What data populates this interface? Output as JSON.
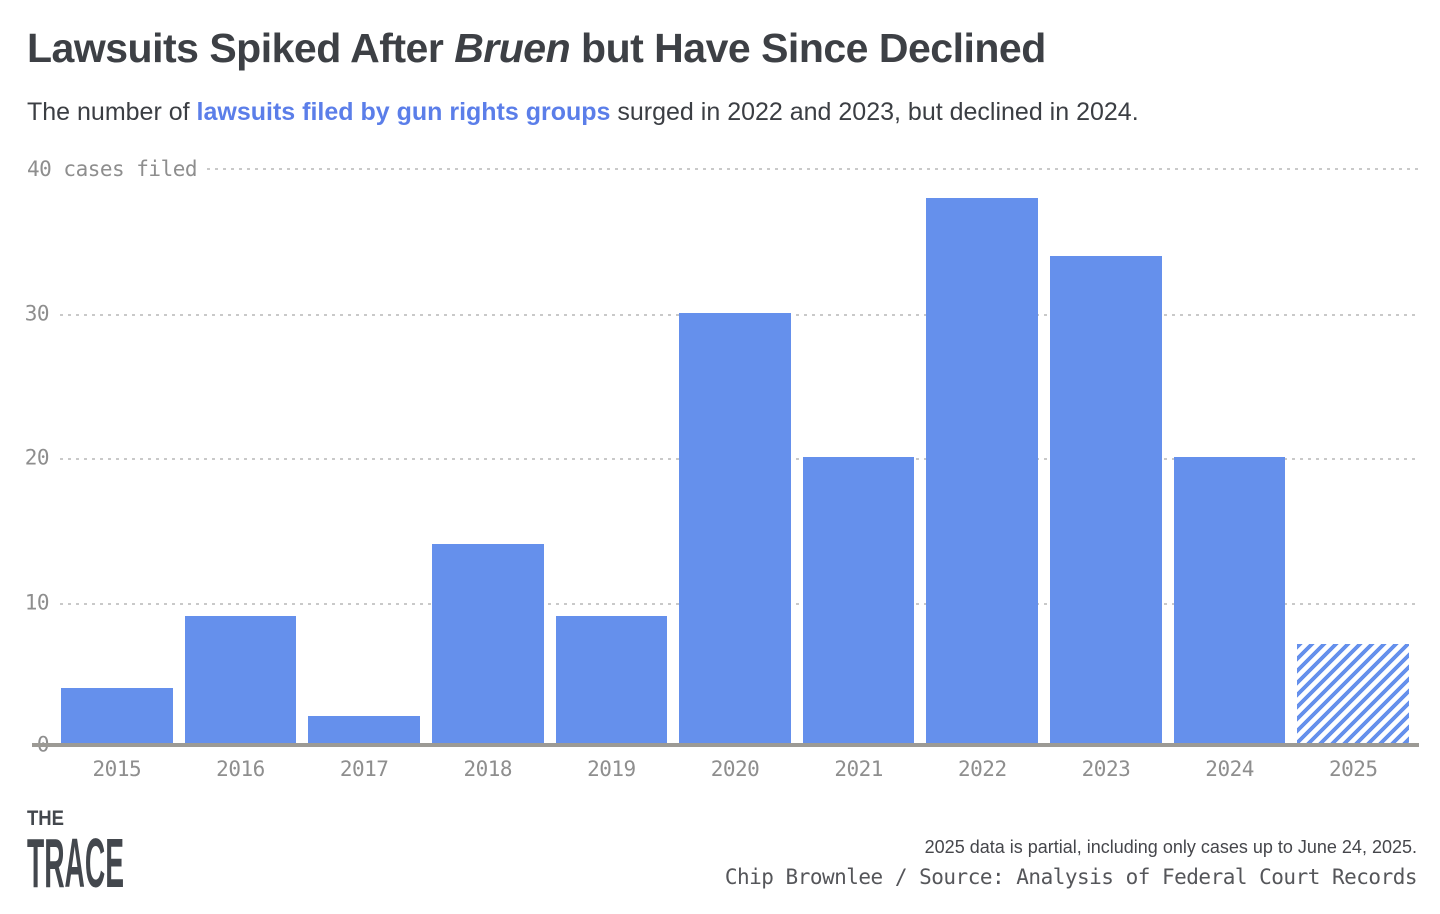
{
  "header": {
    "title_prefix": "Lawsuits Spiked After ",
    "title_italic": "Bruen",
    "title_suffix": " but Have Since Declined",
    "subtitle_prefix": "The number of ",
    "subtitle_link": "lawsuits filed by gun rights groups",
    "subtitle_suffix": " surged in 2022 and 2023, but declined in 2024."
  },
  "chart_data": {
    "type": "bar",
    "categories": [
      "2015",
      "2016",
      "2017",
      "2018",
      "2019",
      "2020",
      "2021",
      "2022",
      "2023",
      "2024",
      "2025"
    ],
    "values": [
      4,
      9,
      2,
      14,
      9,
      30,
      20,
      38,
      34,
      20,
      7
    ],
    "hatched": [
      false,
      false,
      false,
      false,
      false,
      false,
      false,
      false,
      false,
      false,
      true
    ],
    "title": "Lawsuits Spiked After Bruen but Have Since Declined",
    "xlabel": "",
    "ylabel": "cases filed",
    "ylim": [
      0,
      40
    ],
    "yticks": [
      0,
      10,
      20,
      30,
      40
    ],
    "grid": "horizontal-dotted",
    "legend": "none",
    "hatch_meaning": "2025 bar hatched because data is partial"
  },
  "y_axis": {
    "top_label": "40 cases filed",
    "tick_30": "30",
    "tick_20": "20",
    "tick_10": "10",
    "tick_0": "0"
  },
  "footer": {
    "logo_line1": "THE",
    "logo_line2": "TRACE",
    "note": "2025 data is partial, including only cases up to June 24, 2025.",
    "credit": "Chip Brownlee / Source: Analysis of Federal Court Records"
  },
  "colors": {
    "bar": "#6590EC",
    "link": "#5b7ee9",
    "title": "#3d4045",
    "axis_text": "#8e8e8e",
    "gridline": "#c9c9c9",
    "baseline": "#9c9a95",
    "logo": "#43474d"
  }
}
